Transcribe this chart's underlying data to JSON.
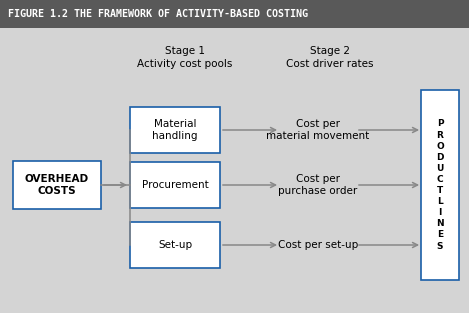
{
  "title": "FIGURE 1.2 THE FRAMEWORK OF ACTIVITY-BASED COSTING",
  "title_bg": "#595959",
  "title_color": "#ffffff",
  "bg_color": "#d4d4d4",
  "box_bg": "#ffffff",
  "box_border_color": "#1a5fa8",
  "arrow_color": "#888888",
  "font_color": "#000000",
  "stage1_label": "Stage 1\nActivity cost pools",
  "stage2_label": "Stage 2\nCost driver rates",
  "overhead_label": "OVERHEAD\nCOSTS",
  "activity_boxes": [
    "Material\nhandling",
    "Procurement",
    "Set-up"
  ],
  "cost_driver_labels": [
    "Cost per\nmaterial movement",
    "Cost per\npurchase order",
    "Cost per set-up"
  ],
  "product_label": "P\nR\nO\nD\nU\nC\nT\nL\nI\nN\nE\nS",
  "title_fontsize": 7.2,
  "main_fontsize": 7.5
}
